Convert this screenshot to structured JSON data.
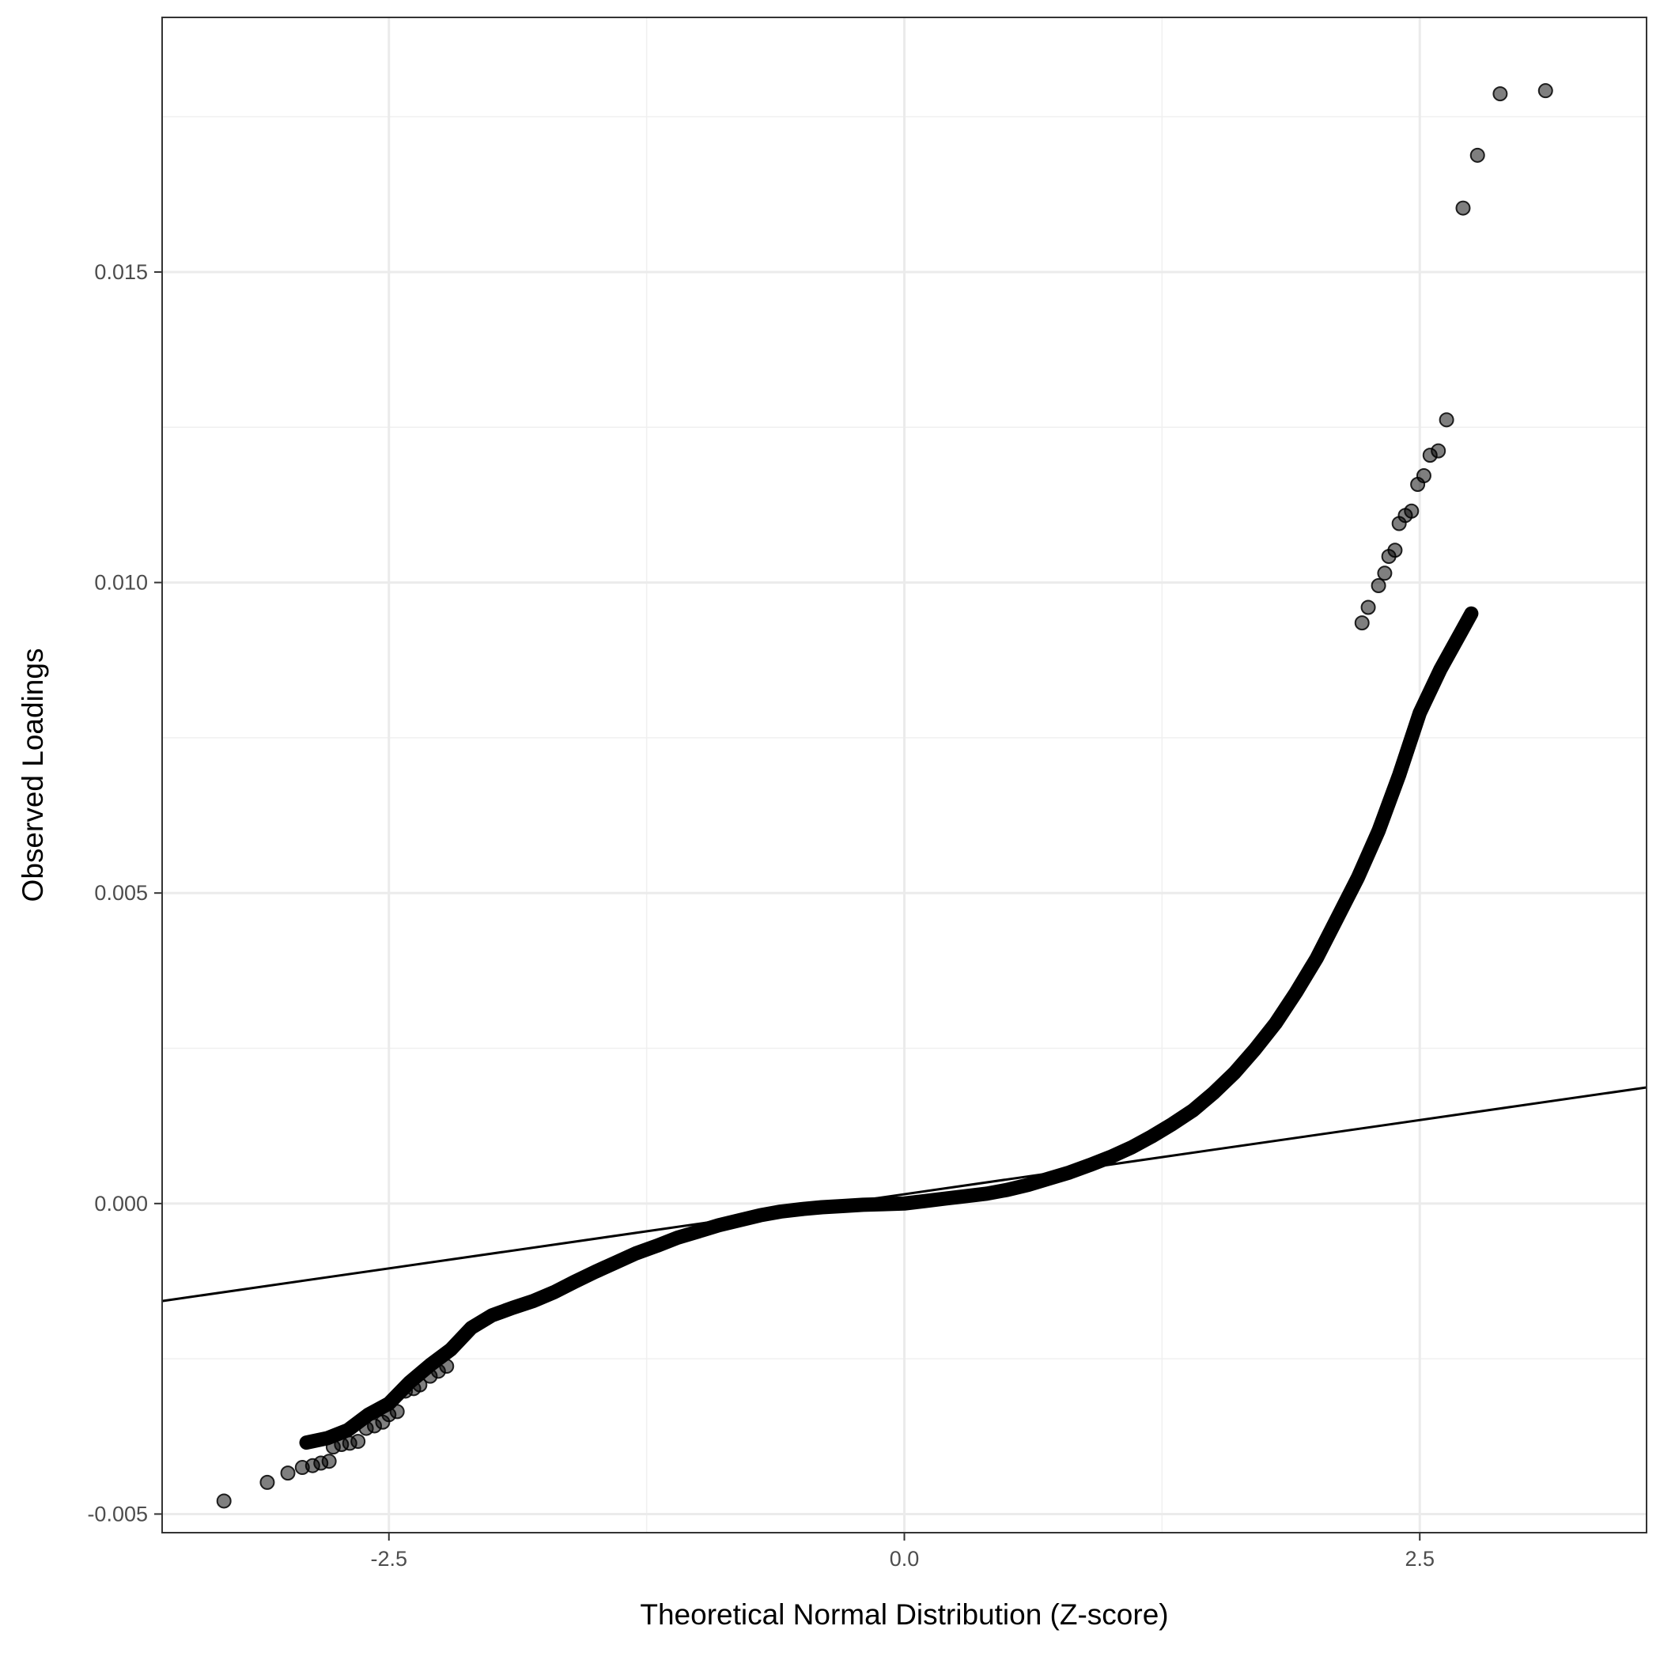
{
  "chart_data": {
    "type": "scatter",
    "title": "",
    "xlabel": "Theoretical Normal Distribution (Z-score)",
    "ylabel": "Observed Loadings",
    "xlim": [
      -3.6,
      3.6
    ],
    "ylim": [
      -0.0053,
      0.0191
    ],
    "x_ticks": [
      {
        "value": -2.5,
        "label": "-2.5"
      },
      {
        "value": 0.0,
        "label": "0.0"
      },
      {
        "value": 2.5,
        "label": "2.5"
      }
    ],
    "y_ticks": [
      {
        "value": -0.005,
        "label": "-0.005"
      },
      {
        "value": 0.0,
        "label": "0.000"
      },
      {
        "value": 0.005,
        "label": "0.005"
      },
      {
        "value": 0.01,
        "label": "0.010"
      },
      {
        "value": 0.015,
        "label": "0.015"
      }
    ],
    "grid": true,
    "legend": "none",
    "reference_line": {
      "type": "qq-line",
      "color": "#000000",
      "points": [
        [
          -3.6,
          -0.00157
        ],
        [
          3.6,
          0.00187
        ]
      ]
    },
    "series": [
      {
        "point_color": "#000000",
        "point_alpha": 0.5,
        "curve_points": [
          [
            -2.9,
            -0.00385
          ],
          [
            -2.8,
            -0.00378
          ],
          [
            -2.7,
            -0.00365
          ],
          [
            -2.6,
            -0.0034
          ],
          [
            -2.5,
            -0.00322
          ],
          [
            -2.4,
            -0.00288
          ],
          [
            -2.3,
            -0.0026
          ],
          [
            -2.2,
            -0.00235
          ],
          [
            -2.1,
            -0.002
          ],
          [
            -2.0,
            -0.0018
          ],
          [
            -1.9,
            -0.00168
          ],
          [
            -1.8,
            -0.00157
          ],
          [
            -1.7,
            -0.00143
          ],
          [
            -1.6,
            -0.00126
          ],
          [
            -1.5,
            -0.0011
          ],
          [
            -1.4,
            -0.00095
          ],
          [
            -1.3,
            -0.0008
          ],
          [
            -1.2,
            -0.00068
          ],
          [
            -1.1,
            -0.00055
          ],
          [
            -1.0,
            -0.00045
          ],
          [
            -0.9,
            -0.00035
          ],
          [
            -0.8,
            -0.00027
          ],
          [
            -0.7,
            -0.00019
          ],
          [
            -0.6,
            -0.00013
          ],
          [
            -0.5,
            -9e-05
          ],
          [
            -0.4,
            -6e-05
          ],
          [
            -0.3,
            -4e-05
          ],
          [
            -0.2,
            -2e-05
          ],
          [
            -0.1,
            -1e-05
          ],
          [
            0.0,
            0.0
          ],
          [
            0.1,
            4e-05
          ],
          [
            0.2,
            8e-05
          ],
          [
            0.3,
            0.00012
          ],
          [
            0.4,
            0.00016
          ],
          [
            0.5,
            0.00022
          ],
          [
            0.6,
            0.0003
          ],
          [
            0.7,
            0.0004
          ],
          [
            0.8,
            0.0005
          ],
          [
            0.9,
            0.00062
          ],
          [
            1.0,
            0.00075
          ],
          [
            1.1,
            0.0009
          ],
          [
            1.2,
            0.00108
          ],
          [
            1.3,
            0.00128
          ],
          [
            1.4,
            0.0015
          ],
          [
            1.5,
            0.00178
          ],
          [
            1.6,
            0.0021
          ],
          [
            1.7,
            0.00248
          ],
          [
            1.8,
            0.0029
          ],
          [
            1.9,
            0.0034
          ],
          [
            2.0,
            0.00395
          ],
          [
            2.1,
            0.0046
          ],
          [
            2.2,
            0.00525
          ],
          [
            2.3,
            0.006
          ],
          [
            2.4,
            0.0069
          ],
          [
            2.5,
            0.0079
          ],
          [
            2.6,
            0.0086
          ],
          [
            2.7,
            0.0092
          ],
          [
            2.75,
            0.0095
          ]
        ],
        "points": [
          [
            -3.3,
            -0.00479
          ],
          [
            -3.09,
            -0.00449
          ],
          [
            -2.99,
            -0.00434
          ],
          [
            -2.92,
            -0.00425
          ],
          [
            -2.87,
            -0.00422
          ],
          [
            -2.83,
            -0.00418
          ],
          [
            -2.79,
            -0.00415
          ],
          [
            -2.77,
            -0.00392
          ],
          [
            -2.73,
            -0.00388
          ],
          [
            -2.69,
            -0.00386
          ],
          [
            -2.65,
            -0.00383
          ],
          [
            -2.61,
            -0.00362
          ],
          [
            -2.57,
            -0.00358
          ],
          [
            -2.53,
            -0.00352
          ],
          [
            -2.5,
            -0.0034
          ],
          [
            -2.46,
            -0.00335
          ],
          [
            -2.42,
            -0.00302
          ],
          [
            -2.38,
            -0.00298
          ],
          [
            -2.35,
            -0.00292
          ],
          [
            -2.3,
            -0.00278
          ],
          [
            -2.26,
            -0.0027
          ],
          [
            -2.22,
            -0.00262
          ],
          [
            2.22,
            0.00935
          ],
          [
            2.25,
            0.0096
          ],
          [
            2.3,
            0.00995
          ],
          [
            2.33,
            0.01015
          ],
          [
            2.35,
            0.01042
          ],
          [
            2.38,
            0.01052
          ],
          [
            2.4,
            0.01095
          ],
          [
            2.43,
            0.01108
          ],
          [
            2.46,
            0.01115
          ],
          [
            2.49,
            0.01158
          ],
          [
            2.52,
            0.01172
          ],
          [
            2.55,
            0.01205
          ],
          [
            2.59,
            0.01212
          ],
          [
            2.63,
            0.01262
          ],
          [
            2.71,
            0.01603
          ],
          [
            2.78,
            0.01688
          ],
          [
            2.89,
            0.01787
          ],
          [
            3.11,
            0.01792
          ]
        ]
      }
    ]
  }
}
